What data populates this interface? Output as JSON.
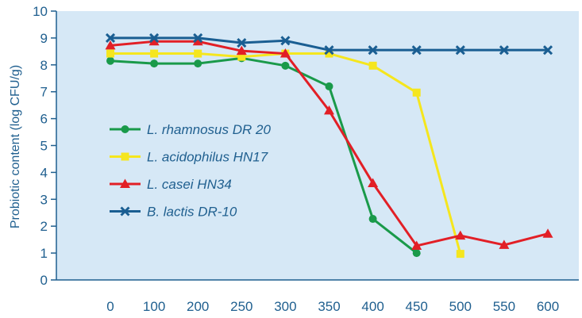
{
  "chart_data": {
    "type": "line",
    "title": "",
    "xlabel": "",
    "ylabel": "Probiotic content (log CFU/g)",
    "categories": [
      "0",
      "100",
      "200",
      "250",
      "300",
      "350",
      "400",
      "450",
      "500",
      "550",
      "600"
    ],
    "ylim": [
      0,
      10
    ],
    "yticks": [
      "0",
      "1",
      "2",
      "3",
      "4",
      "5",
      "6",
      "7",
      "8",
      "9",
      "10"
    ],
    "grid": false,
    "legend_position": "left-center",
    "plot_background": "#d6e8f6",
    "axis_color": "#1f5f8f",
    "series": [
      {
        "name": "L. rhamnosus DR 20",
        "color": "#1a9a4a",
        "marker": "circle",
        "values": [
          8.15,
          8.05,
          8.05,
          8.25,
          7.97,
          7.2,
          2.27,
          1.0,
          null,
          null,
          null
        ]
      },
      {
        "name": "L. acidophilus HN17",
        "color": "#f5e61e",
        "marker": "square",
        "values": [
          8.42,
          8.42,
          8.42,
          8.3,
          8.42,
          8.42,
          7.97,
          6.97,
          0.97,
          null,
          null
        ]
      },
      {
        "name": "L. casei HN34",
        "color": "#e21f26",
        "marker": "triangle",
        "values": [
          8.72,
          8.87,
          8.87,
          8.52,
          8.42,
          6.3,
          3.6,
          1.27,
          1.65,
          1.3,
          1.72
        ]
      },
      {
        "name": "B. lactis DR-10",
        "color": "#1a5e92",
        "marker": "x",
        "values": [
          9.0,
          9.0,
          9.0,
          8.82,
          8.9,
          8.55,
          8.55,
          8.55,
          8.55,
          8.55,
          8.55
        ]
      }
    ]
  }
}
